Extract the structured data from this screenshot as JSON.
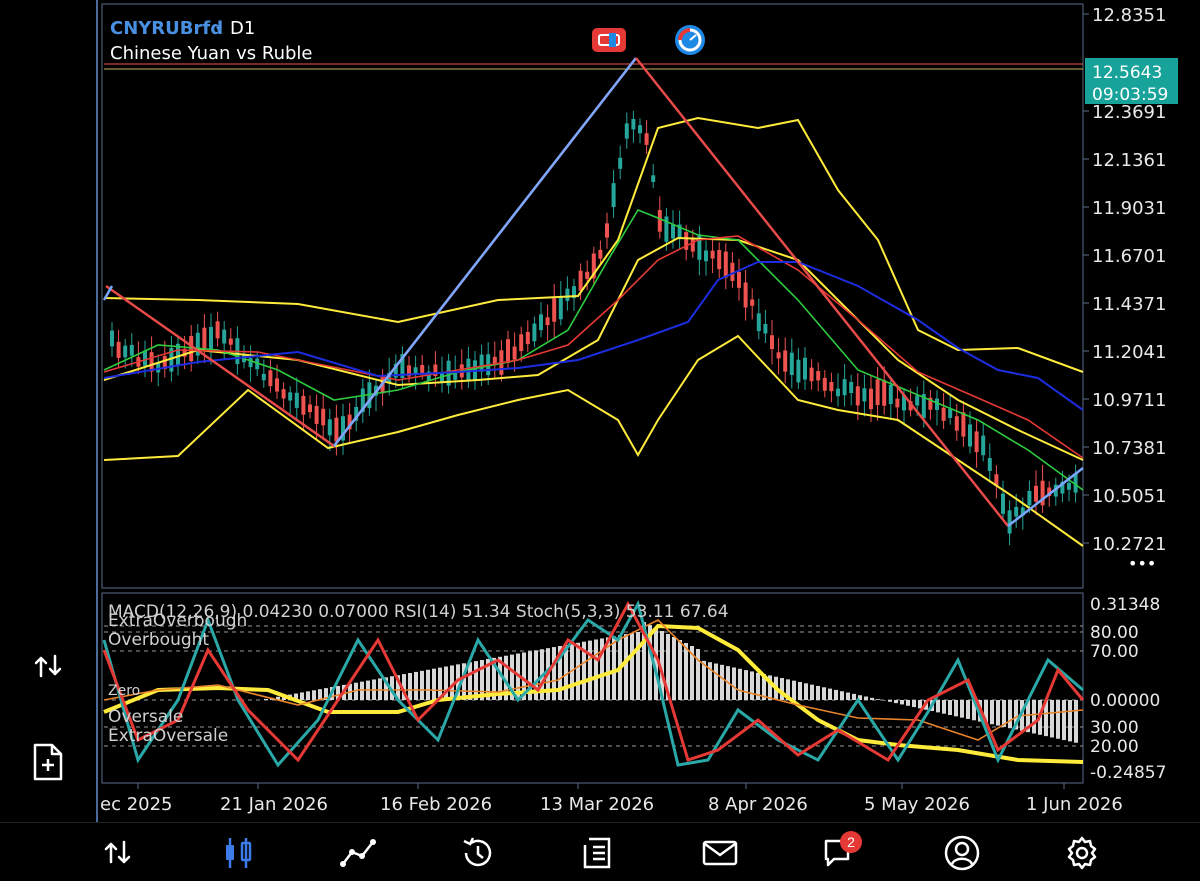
{
  "symbol": "CNYRUBrfd",
  "symbol_arrow": "▾",
  "timeframe": "D1",
  "description": "Chinese Yuan vs Ruble",
  "price_axis": {
    "ticks": [
      "12.8351",
      "12.3691",
      "12.1361",
      "11.9031",
      "11.6701",
      "11.4371",
      "11.2041",
      "10.9711",
      "10.7381",
      "10.5051",
      "10.2721"
    ],
    "current_price": "12.5643",
    "countdown": "09:03:59"
  },
  "more_dots": "•••",
  "indicators": {
    "header": "MACD(12,26,9) 0.04230 0.07000 RSI(14) 51.34 Stoch(5,3,3) 53.11 67.64",
    "scale": [
      "0.31348",
      "80.00",
      "70.00",
      "0.00000",
      "30.00",
      "20.00",
      "-0.24857"
    ],
    "levels": [
      "ExtraOverbough",
      "Overbought",
      "Zero",
      "Oversale",
      "ExtraOversale"
    ]
  },
  "time_axis": [
    "ec 2025",
    "21 Jan 2026",
    "16 Feb 2026",
    "13 Mar 2026",
    "8 Apr 2026",
    "5 May 2026",
    "1 Jun 2026"
  ],
  "nav": {
    "items": [
      {
        "name": "quotes-icon"
      },
      {
        "name": "chart-icon"
      },
      {
        "name": "trade-icon"
      },
      {
        "name": "history-icon"
      },
      {
        "name": "journal-icon"
      },
      {
        "name": "mail-icon"
      },
      {
        "name": "chat-icon"
      },
      {
        "name": "community-icon"
      },
      {
        "name": "settings-icon"
      }
    ],
    "chat_badge": "2"
  },
  "colors": {
    "accent": "#4a90e2",
    "bull": "#26a69a",
    "bear": "#ef5350",
    "price_tag": "#17a39a",
    "bollinger": "#ffeb3b",
    "ma_fast": "#2ecc40",
    "ma_mid": "#e53935",
    "ma_slow": "#1e2ce0",
    "zigzag_up": "#7aa7ff",
    "zigzag_down": "#e84a4a"
  }
}
